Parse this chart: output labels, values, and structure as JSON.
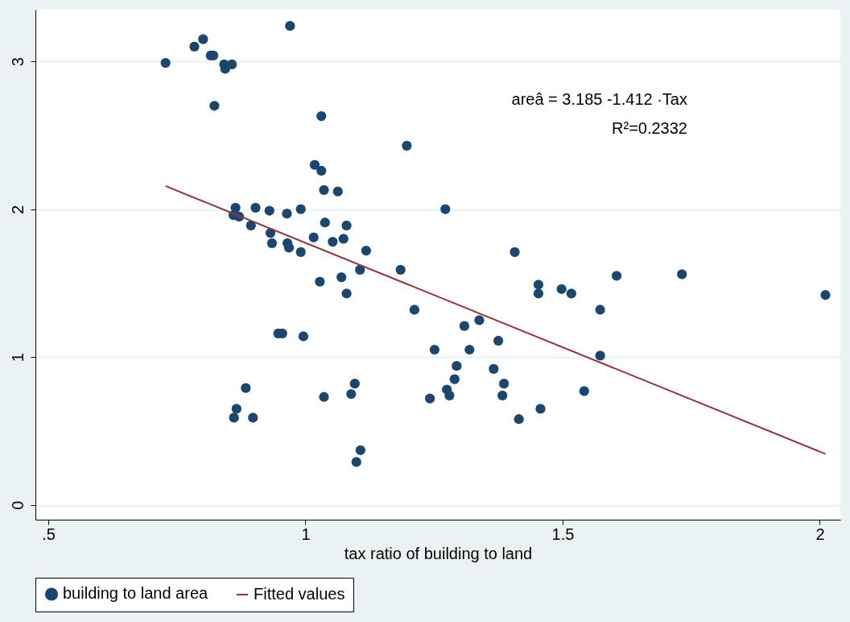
{
  "chart_data": {
    "type": "scatter",
    "xlabel": "tax ratio of building to land",
    "xlim": [
      0.475,
      2.04
    ],
    "ylim": [
      -0.1,
      3.35
    ],
    "xticks": [
      {
        "value": 0.5,
        "label": ".5"
      },
      1,
      1.5,
      2
    ],
    "yticks": [
      0,
      1,
      2,
      3
    ],
    "grid": "y",
    "legend": "bottom",
    "annotations": [
      "areâ = 3.185 -1.412 ·Tax",
      "R²=0.2332"
    ],
    "series": [
      {
        "name": "building to land area",
        "color": "#1a476f",
        "marker": "circle",
        "x": [
          0.728,
          0.784,
          0.801,
          0.816,
          0.821,
          0.842,
          0.844,
          0.857,
          0.97,
          0.823,
          1.031,
          1.197,
          1.018,
          1.031,
          1.036,
          1.063,
          1.272,
          0.864,
          0.86,
          0.871,
          0.903,
          0.93,
          0.964,
          0.991,
          0.894,
          1.038,
          1.08,
          0.932,
          0.935,
          0.965,
          0.968,
          0.991,
          1.016,
          1.053,
          1.074,
          1.118,
          1.407,
          1.185,
          1.106,
          1.07,
          1.028,
          1.08,
          1.212,
          1.453,
          1.453,
          1.498,
          1.517,
          1.605,
          1.732,
          2.011,
          1.573,
          1.309,
          1.338,
          0.947,
          0.955,
          0.996,
          1.375,
          1.251,
          1.319,
          1.294,
          1.573,
          1.366,
          1.386,
          1.29,
          1.096,
          0.884,
          1.275,
          1.542,
          1.28,
          1.383,
          1.089,
          1.036,
          1.242,
          0.866,
          1.457,
          0.861,
          0.898,
          1.415,
          1.107,
          1.099
        ],
        "values": [
          2.99,
          3.1,
          3.15,
          3.04,
          3.04,
          2.98,
          2.95,
          2.98,
          3.24,
          2.7,
          2.63,
          2.43,
          2.3,
          2.26,
          2.13,
          2.12,
          2.0,
          2.01,
          1.96,
          1.95,
          2.01,
          1.99,
          1.97,
          2.0,
          1.89,
          1.91,
          1.89,
          1.84,
          1.77,
          1.77,
          1.74,
          1.71,
          1.81,
          1.78,
          1.8,
          1.72,
          1.71,
          1.59,
          1.59,
          1.54,
          1.51,
          1.43,
          1.32,
          1.49,
          1.43,
          1.46,
          1.43,
          1.55,
          1.56,
          1.42,
          1.32,
          1.21,
          1.25,
          1.16,
          1.16,
          1.14,
          1.11,
          1.05,
          1.05,
          0.94,
          1.01,
          0.92,
          0.82,
          0.85,
          0.82,
          0.79,
          0.78,
          0.77,
          0.74,
          0.74,
          0.75,
          0.73,
          0.72,
          0.65,
          0.65,
          0.59,
          0.59,
          0.58,
          0.37,
          0.29
        ]
      },
      {
        "name": "Fitted values",
        "color": "#90353b",
        "type": "line",
        "x": [
          0.728,
          2.011
        ],
        "values": [
          2.157,
          0.345
        ]
      }
    ]
  }
}
